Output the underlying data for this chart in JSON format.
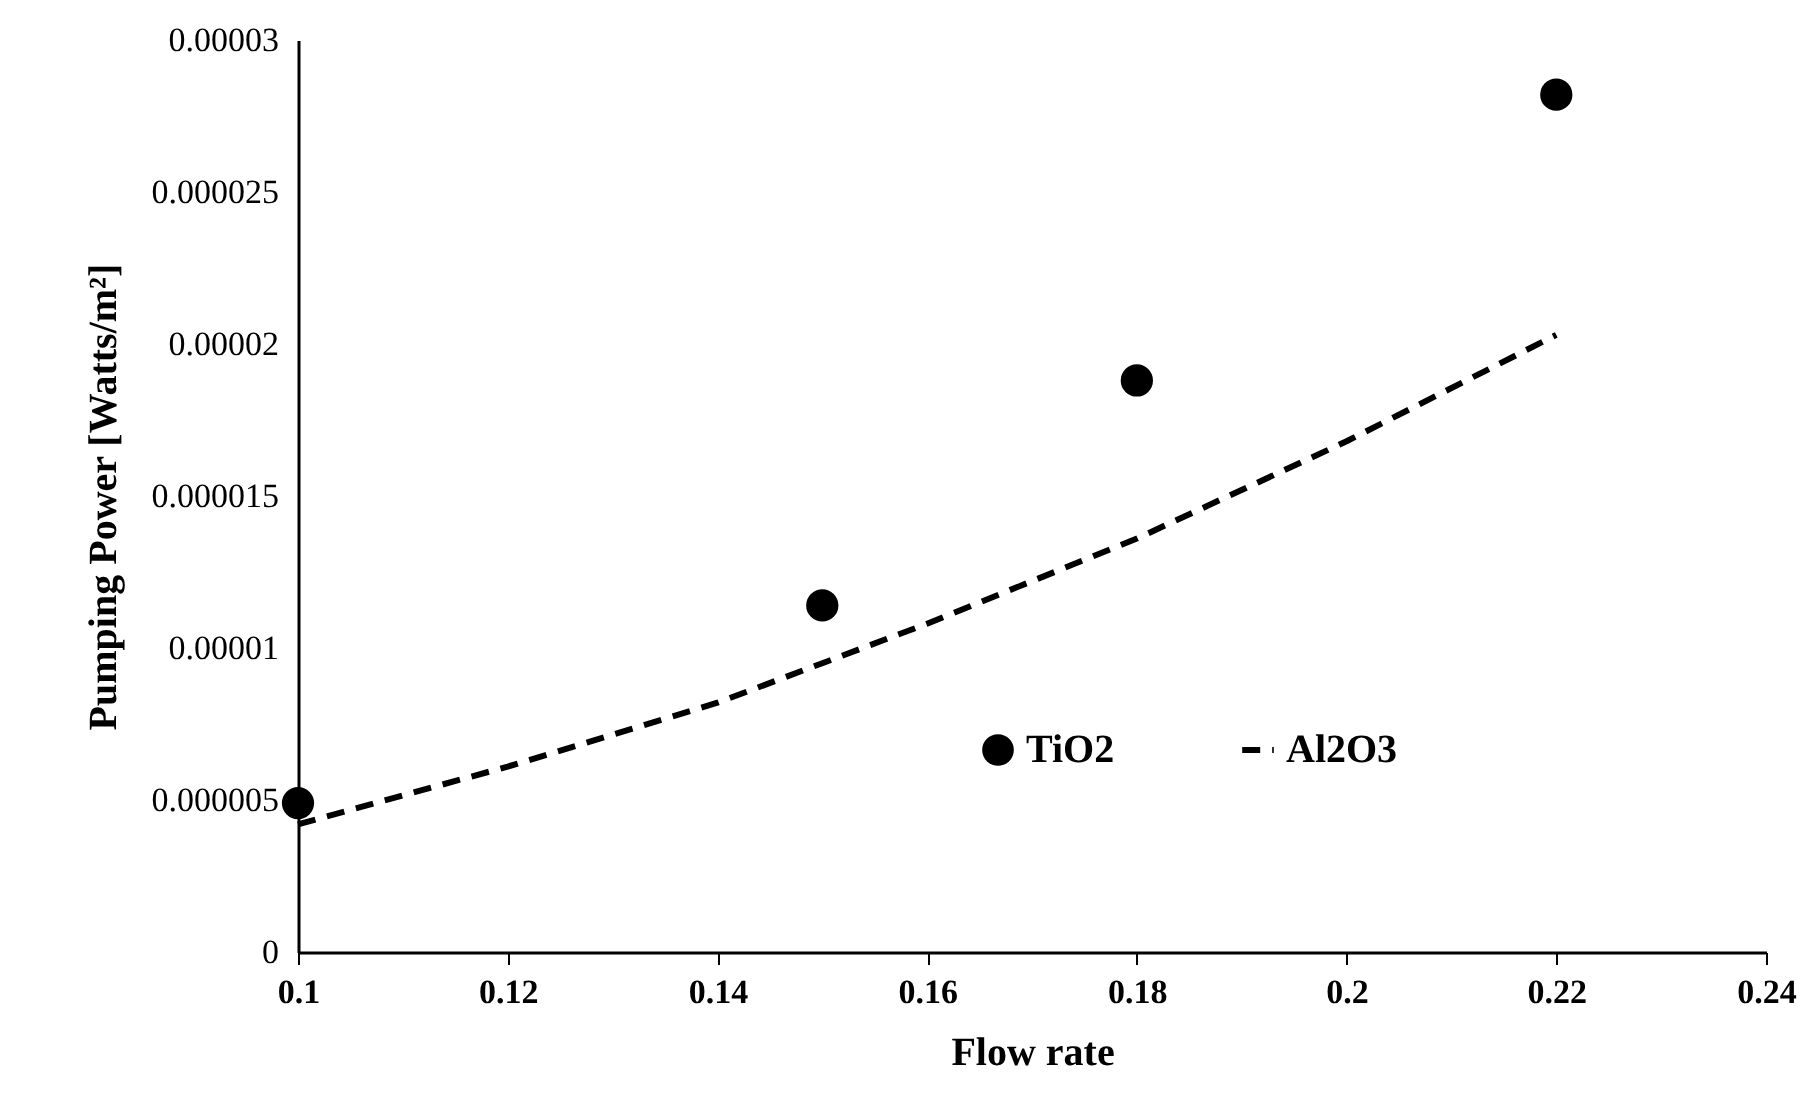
{
  "chart_data": {
    "type": "scatter",
    "xlabel": "Flow rate",
    "ylabel": "Pumping Power [Watts/m²]",
    "xlim": [
      0.1,
      0.24
    ],
    "xticks": [
      0.1,
      0.12,
      0.14,
      0.16,
      0.18,
      0.2,
      0.22,
      0.24
    ],
    "ylim": [
      0,
      3e-05
    ],
    "yticks": [
      0,
      {
        "value": 5e-06,
        "label": "0.000005"
      },
      {
        "value": 1e-05,
        "label": "0.00001"
      },
      {
        "value": 1.5e-05,
        "label": "0.000015"
      },
      {
        "value": 2e-05,
        "label": "0.00002"
      },
      {
        "value": 2.5e-05,
        "label": "0.000025"
      },
      {
        "value": 3e-05,
        "label": "0.00003"
      }
    ],
    "grid": false,
    "legend": "right",
    "series": [
      {
        "name": "TiO2",
        "color": "#000000",
        "marker": "circle",
        "x": [
          0.1,
          0.15,
          0.18,
          0.22
        ],
        "values": [
          4.9e-06,
          1.14e-05,
          1.88e-05,
          2.82e-05
        ]
      },
      {
        "name": "Al2O3",
        "type": "line",
        "color": "#000000",
        "line_style": "dashed",
        "marker": "none",
        "x": [
          0.1,
          0.12,
          0.14,
          0.15,
          0.16,
          0.18,
          0.2,
          0.22
        ],
        "values": [
          4.2e-06,
          6.1e-06,
          8.2e-06,
          9.5e-06,
          1.08e-05,
          1.36e-05,
          1.68e-05,
          2.03e-05
        ]
      }
    ]
  }
}
